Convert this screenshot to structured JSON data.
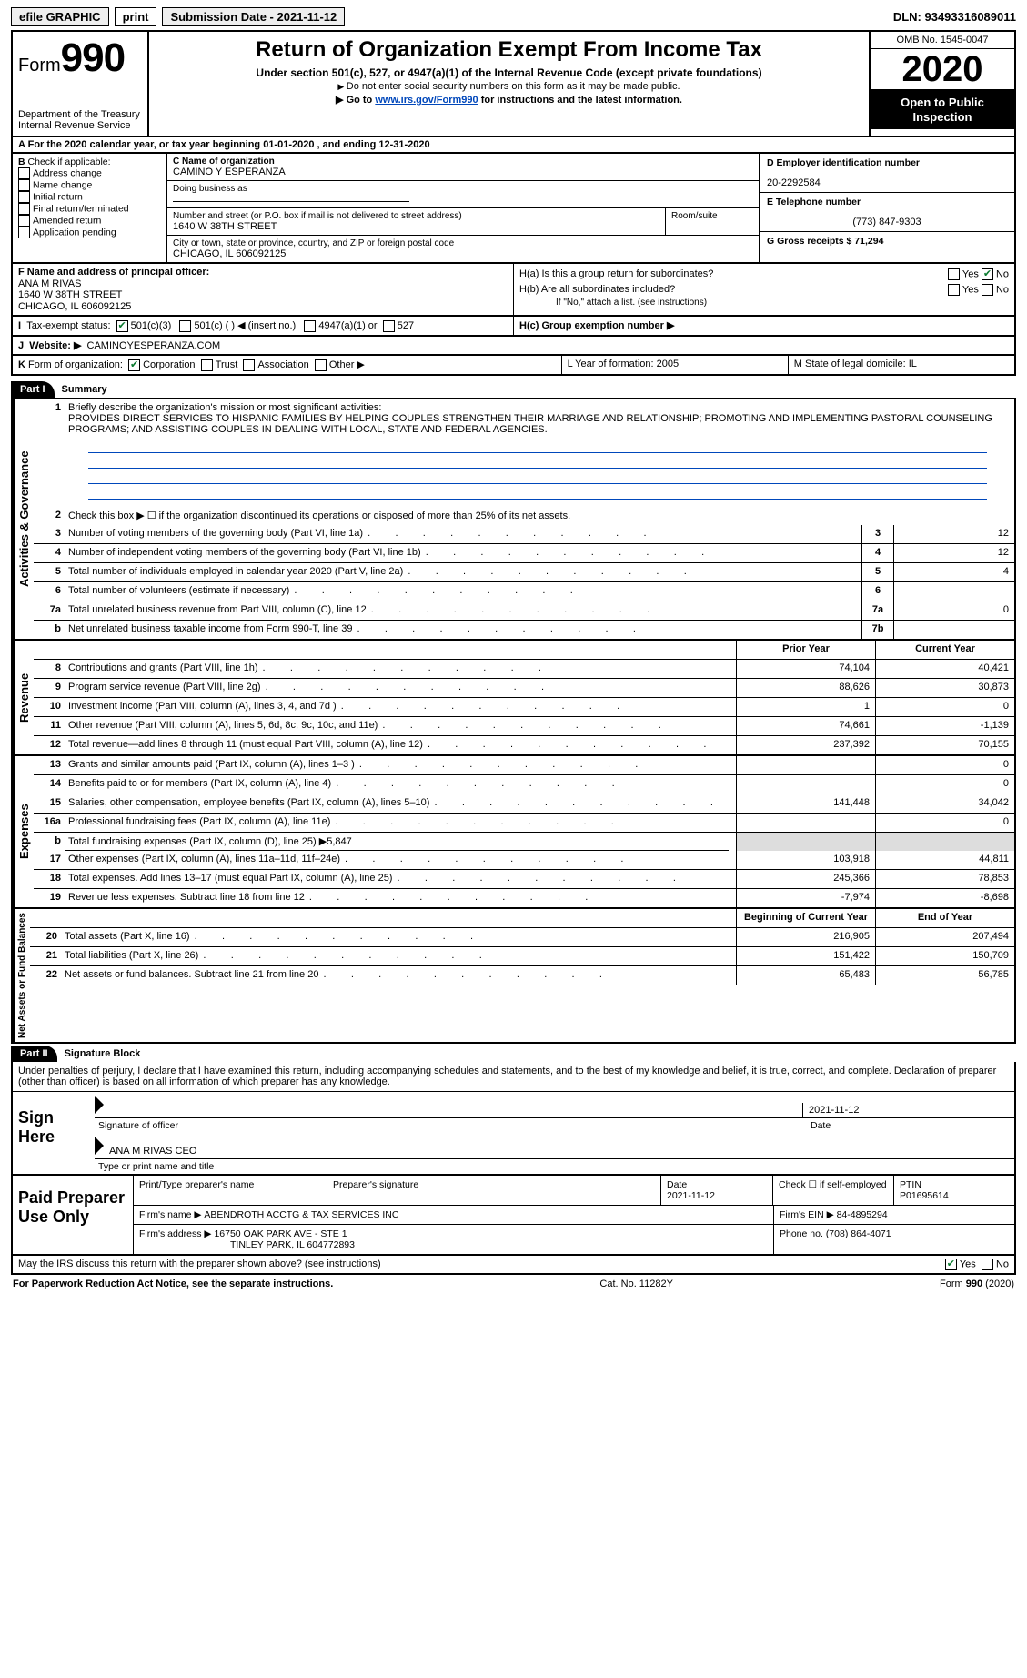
{
  "topbar": {
    "efile": "efile GRAPHIC",
    "print": "print",
    "sub_date_label": "Submission Date - 2021-11-12",
    "dln_label": "DLN: 93493316089011"
  },
  "header": {
    "form_word": "Form",
    "form_num": "990",
    "dept1": "Department of the Treasury",
    "dept2": "Internal Revenue Service",
    "title": "Return of Organization Exempt From Income Tax",
    "subtitle": "Under section 501(c), 527, or 4947(a)(1) of the Internal Revenue Code (except private foundations)",
    "hint1": "Do not enter social security numbers on this form as it may be made public.",
    "hint2_pre": "Go to ",
    "hint2_link": "www.irs.gov/Form990",
    "hint2_post": " for instructions and the latest information.",
    "omb": "OMB No. 1545-0047",
    "year": "2020",
    "open": "Open to Public Inspection"
  },
  "lineA": "For the 2020 calendar year, or tax year beginning 01-01-2020     , and ending 12-31-2020",
  "boxB": {
    "label": "Check if applicable:",
    "items": [
      "Address change",
      "Name change",
      "Initial return",
      "Final return/terminated",
      "Amended return",
      "Application pending"
    ],
    "b_prefix": "B"
  },
  "boxC": {
    "c_label": "C Name of organization",
    "org": "CAMINO Y ESPERANZA",
    "dba": "Doing business as",
    "addr_label": "Number and street (or P.O. box if mail is not delivered to street address)",
    "room": "Room/suite",
    "addr": "1640 W 38TH STREET",
    "city_label": "City or town, state or province, country, and ZIP or foreign postal code",
    "city": "CHICAGO, IL  606092125"
  },
  "boxD": {
    "label": "D Employer identification number",
    "val": "20-2292584"
  },
  "boxE": {
    "label": "E Telephone number",
    "val": "(773) 847-9303"
  },
  "boxG": {
    "label": "G Gross receipts $ 71,294"
  },
  "boxF": {
    "label": "F  Name and address of principal officer:",
    "name": "ANA M RIVAS",
    "l1": "1640 W 38TH STREET",
    "l2": "CHICAGO, IL  606092125"
  },
  "boxH": {
    "ha": "H(a)  Is this a group return for subordinates?",
    "hb": "H(b)  Are all subordinates included?",
    "hb_note": "If \"No,\" attach a list. (see instructions)",
    "hc": "H(c)  Group exemption number ▶",
    "yes": "Yes",
    "no": "No"
  },
  "boxI": {
    "label": "Tax-exempt status:",
    "o1": "501(c)(3)",
    "o2": "501(c) (  ) ◀ (insert no.)",
    "o3": "4947(a)(1) or",
    "o4": "527",
    "prefix": "I"
  },
  "boxJ": {
    "label": "Website: ▶",
    "val": "CAMINOYESPERANZA.COM",
    "prefix": "J"
  },
  "boxK": {
    "label": "Form of organization:",
    "o1": "Corporation",
    "o2": "Trust",
    "o3": "Association",
    "o4": "Other ▶",
    "prefix": "K"
  },
  "boxL": {
    "label": "L Year of formation: 2005"
  },
  "boxM": {
    "label": "M State of legal domicile: IL"
  },
  "part1": {
    "tag": "Part I",
    "title": "Summary",
    "q1_num": "1",
    "q1": "Briefly describe the organization's mission or most significant activities:",
    "mission": "PROVIDES DIRECT SERVICES TO HISPANIC FAMILIES BY HELPING COUPLES STRENGTHEN THEIR MARRIAGE AND RELATIONSHIP; PROMOTING AND IMPLEMENTING PASTORAL COUNSELING PROGRAMS; AND ASSISTING COUPLES IN DEALING WITH LOCAL, STATE AND FEDERAL AGENCIES.",
    "side_gov": "Activities & Governance",
    "side_rev": "Revenue",
    "side_exp": "Expenses",
    "side_net": "Net Assets or Fund Balances",
    "rows_gov": [
      {
        "n": "2",
        "d": "Check this box ▶ ☐  if the organization discontinued its operations or disposed of more than 25% of its net assets.",
        "box": "",
        "v": ""
      },
      {
        "n": "3",
        "d": "Number of voting members of the governing body (Part VI, line 1a)",
        "box": "3",
        "v": "12"
      },
      {
        "n": "4",
        "d": "Number of independent voting members of the governing body (Part VI, line 1b)",
        "box": "4",
        "v": "12"
      },
      {
        "n": "5",
        "d": "Total number of individuals employed in calendar year 2020 (Part V, line 2a)",
        "box": "5",
        "v": "4"
      },
      {
        "n": "6",
        "d": "Total number of volunteers (estimate if necessary)",
        "box": "6",
        "v": ""
      },
      {
        "n": "7a",
        "d": "Total unrelated business revenue from Part VIII, column (C), line 12",
        "box": "7a",
        "v": "0"
      },
      {
        "n": "b",
        "d": "Net unrelated business taxable income from Form 990-T, line 39",
        "box": "7b",
        "v": ""
      }
    ],
    "head_prior": "Prior Year",
    "head_curr": "Current Year",
    "rows_rev": [
      {
        "n": "8",
        "d": "Contributions and grants (Part VIII, line 1h)",
        "p": "74,104",
        "c": "40,421"
      },
      {
        "n": "9",
        "d": "Program service revenue (Part VIII, line 2g)",
        "p": "88,626",
        "c": "30,873"
      },
      {
        "n": "10",
        "d": "Investment income (Part VIII, column (A), lines 3, 4, and 7d )",
        "p": "1",
        "c": "0"
      },
      {
        "n": "11",
        "d": "Other revenue (Part VIII, column (A), lines 5, 6d, 8c, 9c, 10c, and 11e)",
        "p": "74,661",
        "c": "-1,139"
      },
      {
        "n": "12",
        "d": "Total revenue—add lines 8 through 11 (must equal Part VIII, column (A), line 12)",
        "p": "237,392",
        "c": "70,155"
      }
    ],
    "rows_exp": [
      {
        "n": "13",
        "d": "Grants and similar amounts paid (Part IX, column (A), lines 1–3 )",
        "p": "",
        "c": "0"
      },
      {
        "n": "14",
        "d": "Benefits paid to or for members (Part IX, column (A), line 4)",
        "p": "",
        "c": "0"
      },
      {
        "n": "15",
        "d": "Salaries, other compensation, employee benefits (Part IX, column (A), lines 5–10)",
        "p": "141,448",
        "c": "34,042"
      },
      {
        "n": "16a",
        "d": "Professional fundraising fees (Part IX, column (A), line 11e)",
        "p": "",
        "c": "0"
      },
      {
        "n": "b",
        "d": "Total fundraising expenses (Part IX, column (D), line 25) ▶5,847",
        "p": "__noval__",
        "c": "__noval__"
      },
      {
        "n": "17",
        "d": "Other expenses (Part IX, column (A), lines 11a–11d, 11f–24e)",
        "p": "103,918",
        "c": "44,811"
      },
      {
        "n": "18",
        "d": "Total expenses. Add lines 13–17 (must equal Part IX, column (A), line 25)",
        "p": "245,366",
        "c": "78,853"
      },
      {
        "n": "19",
        "d": "Revenue less expenses. Subtract line 18 from line 12",
        "p": "-7,974",
        "c": "-8,698"
      }
    ],
    "head_beg": "Beginning of Current Year",
    "head_end": "End of Year",
    "rows_net": [
      {
        "n": "20",
        "d": "Total assets (Part X, line 16)",
        "p": "216,905",
        "c": "207,494"
      },
      {
        "n": "21",
        "d": "Total liabilities (Part X, line 26)",
        "p": "151,422",
        "c": "150,709"
      },
      {
        "n": "22",
        "d": "Net assets or fund balances. Subtract line 21 from line 20",
        "p": "65,483",
        "c": "56,785"
      }
    ]
  },
  "part2": {
    "tag": "Part II",
    "title": "Signature Block",
    "decl": "Under penalties of perjury, I declare that I have examined this return, including accompanying schedules and statements, and to the best of my knowledge and belief, it is true, correct, and complete. Declaration of preparer (other than officer) is based on all information of which preparer has any knowledge.",
    "sign_here": "Sign Here",
    "sig_officer": "Signature of officer",
    "sig_date": "Date",
    "sig_date_val": "2021-11-12",
    "sig_name": "ANA M RIVAS  CEO",
    "sig_name_label": "Type or print name and title",
    "paid": "Paid Preparer Use Only",
    "p_name_label": "Print/Type preparer's name",
    "p_sig_label": "Preparer's signature",
    "p_date_label": "Date",
    "p_date": "2021-11-12",
    "p_check": "Check ☐ if self-employed",
    "p_ptin_label": "PTIN",
    "p_ptin": "P01695614",
    "firm_name_label": "Firm's name      ▶",
    "firm_name": "ABENDROTH ACCTG & TAX SERVICES INC",
    "firm_ein_label": "Firm's EIN ▶",
    "firm_ein": "84-4895294",
    "firm_addr_label": "Firm's address ▶",
    "firm_addr1": "16750 OAK PARK AVE - STE 1",
    "firm_addr2": "TINLEY PARK, IL  604772893",
    "firm_phone_label": "Phone no.",
    "firm_phone": "(708) 864-4071",
    "discuss": "May the IRS discuss this return with the preparer shown above? (see instructions)"
  },
  "footer": {
    "pra": "For Paperwork Reduction Act Notice, see the separate instructions.",
    "cat": "Cat. No. 11282Y",
    "form": "Form 990 (2020)"
  },
  "colors": {
    "link": "#0047bb",
    "check": "#0a7a2f"
  }
}
